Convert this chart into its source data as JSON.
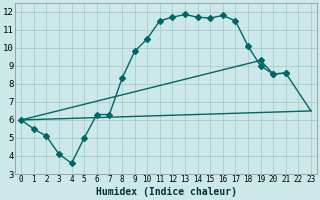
{
  "title": "",
  "xlabel": "Humidex (Indice chaleur)",
  "bg_color": "#cce8e8",
  "grid_color": "#aacccc",
  "line_color": "#006666",
  "xlim": [
    -0.5,
    23.5
  ],
  "ylim": [
    3,
    12.5
  ],
  "xticks": [
    0,
    1,
    2,
    3,
    4,
    5,
    6,
    7,
    8,
    9,
    10,
    11,
    12,
    13,
    14,
    15,
    16,
    17,
    18,
    19,
    20,
    21,
    22,
    23
  ],
  "yticks": [
    3,
    4,
    5,
    6,
    7,
    8,
    9,
    10,
    11,
    12
  ],
  "line1_x": [
    0,
    1,
    2,
    3,
    4,
    5,
    6,
    7,
    8,
    9,
    10,
    11,
    12,
    13,
    14,
    15,
    16,
    17,
    18,
    19,
    20,
    21
  ],
  "line1_y": [
    6.0,
    5.5,
    5.1,
    4.1,
    3.6,
    5.0,
    6.3,
    6.3,
    8.3,
    9.8,
    10.5,
    11.5,
    11.7,
    11.85,
    11.7,
    11.65,
    11.8,
    11.5,
    10.1,
    9.0,
    8.55,
    8.6
  ],
  "line2_x": [
    0,
    23
  ],
  "line2_y": [
    6.0,
    6.5
  ],
  "line3_x": [
    0,
    19,
    20,
    21,
    23
  ],
  "line3_y": [
    6.0,
    9.3,
    8.55,
    8.6,
    6.5
  ],
  "marker_size": 3,
  "line_width": 1.0
}
